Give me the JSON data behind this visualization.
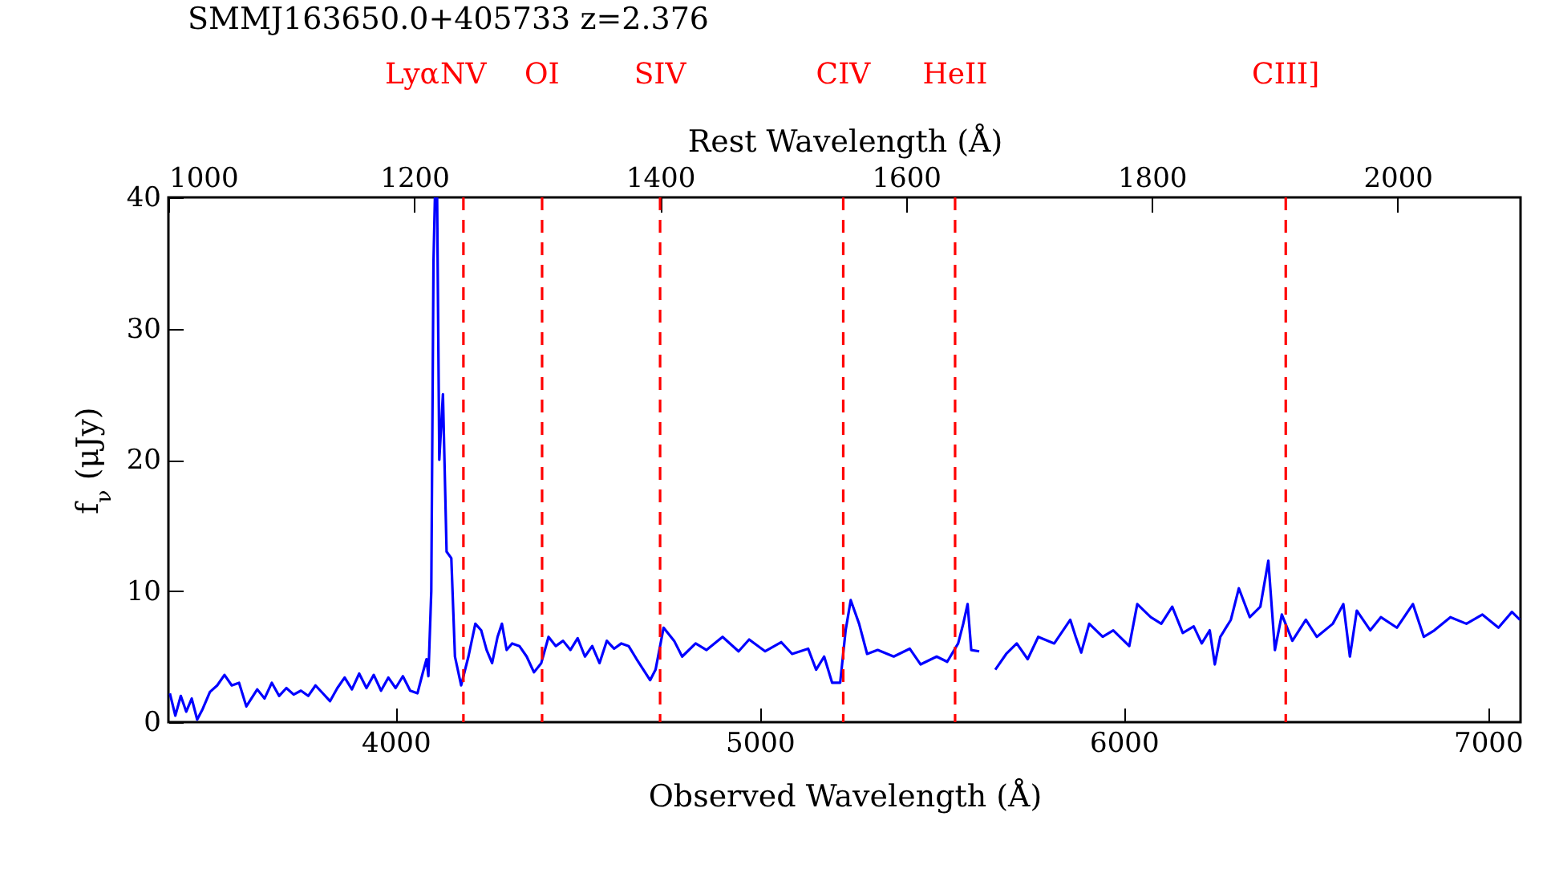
{
  "chart_data": {
    "type": "line",
    "title": "SMMJ163650.0+405733   z=2.376",
    "xlabel": "Observed Wavelength (Å)",
    "ylabel": "f$_{ν}$ (μJy)",
    "x2label": "Rest Wavelength (Å)",
    "xlim": [
      3376,
      7089.6
    ],
    "xticks": [
      4000,
      5000,
      6000,
      7000
    ],
    "x2lim": [
      1000,
      2100
    ],
    "x2ticks": [
      1000,
      1200,
      1400,
      1600,
      1800,
      2000
    ],
    "ylim": [
      0,
      40
    ],
    "yticks": [
      0,
      10,
      20,
      30,
      40
    ],
    "grid": false,
    "marker": "none",
    "line_style": "solid",
    "series": [
      {
        "color": "#0000ff",
        "x": [
          3380,
          3395,
          3410,
          3425,
          3440,
          3455,
          3470,
          3490,
          3510,
          3530,
          3550,
          3570,
          3590,
          3620,
          3640,
          3660,
          3680,
          3700,
          3720,
          3740,
          3760,
          3780,
          3800,
          3820,
          3840,
          3860,
          3880,
          3900,
          3920,
          3940,
          3960,
          3980,
          4000,
          4020,
          4040,
          4060,
          4075,
          4085,
          4090,
          4098,
          4104,
          4108,
          4114,
          4120,
          4130,
          4140,
          4153,
          4163,
          4180,
          4200,
          4219,
          4235,
          4250,
          4265,
          4280,
          4292,
          4305,
          4320,
          4340,
          4360,
          4380,
          4400,
          4420,
          4440,
          4460,
          4480,
          4500,
          4520,
          4540,
          4560,
          4580,
          4600,
          4620,
          4640,
          4662,
          4699,
          4714,
          4736,
          4765,
          4787,
          4824,
          4854,
          4898,
          4942,
          4971,
          5015,
          5059,
          5089,
          5133,
          5155,
          5177,
          5199,
          5221,
          5236,
          5250,
          5273,
          5295,
          5324,
          5368,
          5412,
          5442,
          5486,
          5515,
          5545,
          5559,
          5571,
          5581,
          5603,
          5625,
          5647,
          5677,
          5706,
          5736,
          5765,
          5809,
          5853,
          5868,
          5883,
          5905,
          5942,
          5971,
          6015,
          6037,
          6074,
          6103,
          6133,
          6162,
          6192,
          6214,
          6236,
          6250,
          6265,
          6294,
          6316,
          6346,
          6375,
          6397,
          6415,
          6434,
          6463,
          6500,
          6530,
          6574,
          6603,
          6621,
          6640,
          6677,
          6706,
          6750,
          6794,
          6824,
          6853,
          6897,
          6941,
          6985,
          7029,
          7066,
          7088
        ],
        "values": [
          2.2,
          0.5,
          2.0,
          0.8,
          1.8,
          0.2,
          1.0,
          2.3,
          2.8,
          3.6,
          2.8,
          3.0,
          1.2,
          2.5,
          1.8,
          3.0,
          2.0,
          2.6,
          2.1,
          2.4,
          2.0,
          2.8,
          2.2,
          1.6,
          2.6,
          3.4,
          2.5,
          3.7,
          2.6,
          3.6,
          2.4,
          3.4,
          2.6,
          3.5,
          2.4,
          2.2,
          3.8,
          4.8,
          3.5,
          10,
          35,
          40,
          40,
          20,
          25,
          13,
          12.5,
          5,
          2.8,
          5,
          7.5,
          7.0,
          5.5,
          4.5,
          6.5,
          7.5,
          5.5,
          6.0,
          5.8,
          5.0,
          3.8,
          4.5,
          6.5,
          5.8,
          6.2,
          5.5,
          6.4,
          5.0,
          5.8,
          4.5,
          6.2,
          5.6,
          6.0,
          5.8,
          4.8,
          3.2,
          4.0,
          7.2,
          6.2,
          5.0,
          6.0,
          5.5,
          6.5,
          5.4,
          6.3,
          5.4,
          6.1,
          5.2,
          5.6,
          4.0,
          5.0,
          3.0,
          3.0,
          7.0,
          9.3,
          7.5,
          5.2,
          5.5,
          5.0,
          5.6,
          4.4,
          5.0,
          4.6,
          6.0,
          7.5,
          9.0,
          5.5,
          5.4,
          null,
          4.0,
          5.2,
          6.0,
          4.8,
          6.5,
          6.0,
          7.8,
          6.5,
          5.3,
          7.5,
          6.5,
          7.0,
          5.8,
          9.0,
          8.0,
          7.5,
          8.8,
          6.8,
          7.3,
          6.0,
          7.0,
          4.4,
          6.5,
          7.8,
          10.2,
          8.0,
          8.8,
          12.3,
          5.5,
          8.2,
          6.2,
          7.8,
          6.5,
          7.5,
          9.0,
          5.0,
          8.5,
          7.0,
          8.0,
          7.2,
          9.0,
          6.5,
          7.0,
          8.0,
          7.5,
          8.2,
          7.2,
          8.4,
          7.8
        ]
      }
    ],
    "ref_lines": [
      {
        "axis": "x2",
        "value": 1240,
        "label": "NV",
        "color": "#ff0000",
        "line_style": "dashed"
      },
      {
        "axis": "x2",
        "value": 1304,
        "label": "OI",
        "color": "#ff0000",
        "line_style": "dashed"
      },
      {
        "axis": "x2",
        "value": 1400,
        "label": "SIV",
        "color": "#ff0000",
        "line_style": "dashed"
      },
      {
        "axis": "x2",
        "value": 1549,
        "label": "CIV",
        "color": "#ff0000",
        "line_style": "dashed"
      },
      {
        "axis": "x2",
        "value": 1640,
        "label": "HeII",
        "color": "#ff0000",
        "line_style": "dashed"
      },
      {
        "axis": "x2",
        "value": 1909,
        "label": "CIII]",
        "color": "#ff0000",
        "line_style": "dashed"
      }
    ],
    "annotations": [
      "Lyα"
    ]
  }
}
